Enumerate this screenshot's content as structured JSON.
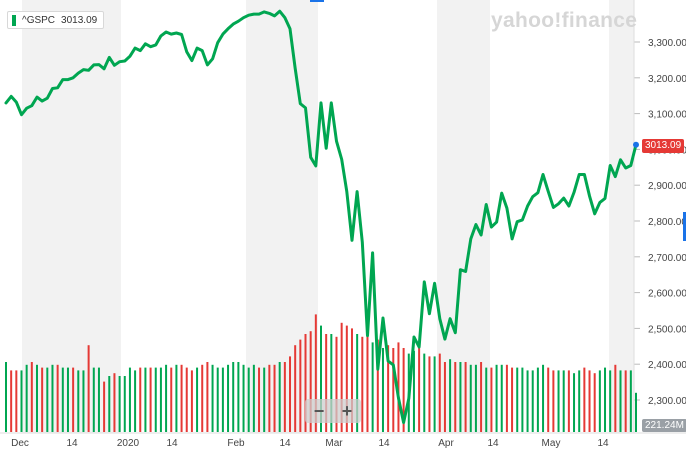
{
  "legend": {
    "symbol": "^GSPC",
    "value": "3013.09"
  },
  "watermark": "yahoo!finance",
  "price_tag": "3013.09",
  "volume_tag": "221.24M",
  "zoom": {
    "minus": "−",
    "plus": "+"
  },
  "colors": {
    "line": "#00a651",
    "up": "#00a651",
    "down": "#e53935",
    "band": "#f2f2f2",
    "price_tag": "#e53935"
  },
  "chart_data": {
    "type": "line",
    "title": "",
    "series": [
      {
        "name": "^GSPC",
        "values": [
          3130,
          3148,
          3132,
          3097,
          3115,
          3122,
          3146,
          3135,
          3143,
          3170,
          3172,
          3195,
          3195,
          3200,
          3213,
          3223,
          3221,
          3236,
          3237,
          3225,
          3257,
          3235,
          3245,
          3247,
          3260,
          3283,
          3276,
          3295,
          3287,
          3292,
          3317,
          3328,
          3322,
          3325,
          3321,
          3273,
          3248,
          3283,
          3276,
          3236,
          3253,
          3298,
          3322,
          3337,
          3350,
          3358,
          3368,
          3375,
          3378,
          3378,
          3384,
          3380,
          3373,
          3386,
          3368,
          3337,
          3226,
          3128,
          3116,
          2978,
          2954,
          3130,
          3003,
          3130,
          3023,
          2972,
          2882,
          2746,
          2882,
          2741,
          2480,
          2711,
          2386,
          2529,
          2409,
          2398,
          2305,
          2237,
          2304,
          2476,
          2448,
          2630,
          2541,
          2626,
          2527,
          2470,
          2527,
          2488,
          2664,
          2659,
          2750,
          2790,
          2761,
          2846,
          2783,
          2797,
          2878,
          2836,
          2750,
          2798,
          2803,
          2842,
          2868,
          2879,
          2930,
          2883,
          2838,
          2848,
          2864,
          2842,
          2880,
          2930,
          2930,
          2870,
          2820,
          2852,
          2863,
          2955,
          2924,
          2971,
          2948,
          2955,
          3013
        ]
      }
    ],
    "volume_up": [
      1,
      0,
      0,
      1,
      1,
      0,
      1,
      0,
      1,
      1,
      0,
      1,
      1,
      0,
      1,
      1,
      0,
      1,
      1,
      0,
      1,
      0,
      1,
      1,
      1,
      1,
      0,
      1,
      0,
      1,
      1,
      1,
      0,
      1,
      0,
      0,
      0,
      1,
      0,
      0,
      1,
      1,
      1,
      1,
      1,
      1,
      1,
      1,
      1,
      0,
      1,
      0,
      0,
      1,
      0,
      0,
      0,
      0,
      0,
      0,
      0,
      1,
      0,
      1,
      0,
      0,
      0,
      0,
      1,
      0,
      0,
      1,
      0,
      1,
      0,
      0,
      0,
      0,
      1,
      1,
      0,
      1,
      0,
      1,
      0,
      0,
      1,
      0,
      1,
      0,
      1,
      1,
      0,
      1,
      0,
      1,
      1,
      0,
      0,
      1,
      1,
      1,
      1,
      1,
      1,
      0,
      0,
      1,
      1,
      0,
      1,
      1,
      0,
      0,
      0,
      1,
      1,
      1,
      0,
      1,
      0,
      1,
      1
    ],
    "volume": [
      2.5,
      2.2,
      2.2,
      2.2,
      2.4,
      2.5,
      2.4,
      2.3,
      2.3,
      2.4,
      2.4,
      2.3,
      2.3,
      2.3,
      2.2,
      2.2,
      3.1,
      2.3,
      2.3,
      1.8,
      2.0,
      2.1,
      2.0,
      2.0,
      2.3,
      2.2,
      2.3,
      2.3,
      2.3,
      2.3,
      2.3,
      2.4,
      2.3,
      2.4,
      2.4,
      2.3,
      2.2,
      2.3,
      2.4,
      2.5,
      2.4,
      2.3,
      2.3,
      2.4,
      2.5,
      2.5,
      2.4,
      2.3,
      2.4,
      2.3,
      2.3,
      2.4,
      2.4,
      2.5,
      2.5,
      2.7,
      3.1,
      3.3,
      3.5,
      3.6,
      4.2,
      3.8,
      3.5,
      3.5,
      3.4,
      3.9,
      3.8,
      3.7,
      3.5,
      3.4,
      3.7,
      3.2,
      3.3,
      3.0,
      3.1,
      3.0,
      3.2,
      3.0,
      2.8,
      2.9,
      3.0,
      2.8,
      2.7,
      2.7,
      2.8,
      2.5,
      2.6,
      2.5,
      2.5,
      2.5,
      2.4,
      2.4,
      2.5,
      2.3,
      2.3,
      2.4,
      2.4,
      2.4,
      2.3,
      2.3,
      2.3,
      2.2,
      2.2,
      2.3,
      2.4,
      2.3,
      2.2,
      2.2,
      2.2,
      2.2,
      2.1,
      2.2,
      2.3,
      2.2,
      2.1,
      2.2,
      2.3,
      2.2,
      2.4,
      2.2,
      2.2,
      2.2,
      1.4
    ],
    "x_tick_labels": [
      "Dec",
      "14",
      "2020",
      "14",
      "Feb",
      "14",
      "Mar",
      "14",
      "Apr",
      "14",
      "May",
      "14"
    ],
    "y_tick_labels": [
      "3,300.00",
      "3,200.00",
      "3,100.00",
      "3,000.00",
      "2,900.00",
      "2,800.00",
      "2,700.00",
      "2,600.00",
      "2,500.00",
      "2,400.00",
      "2,300.00"
    ],
    "ylim": [
      2200,
      3400
    ],
    "grid": true,
    "legend_position": "top-left"
  }
}
